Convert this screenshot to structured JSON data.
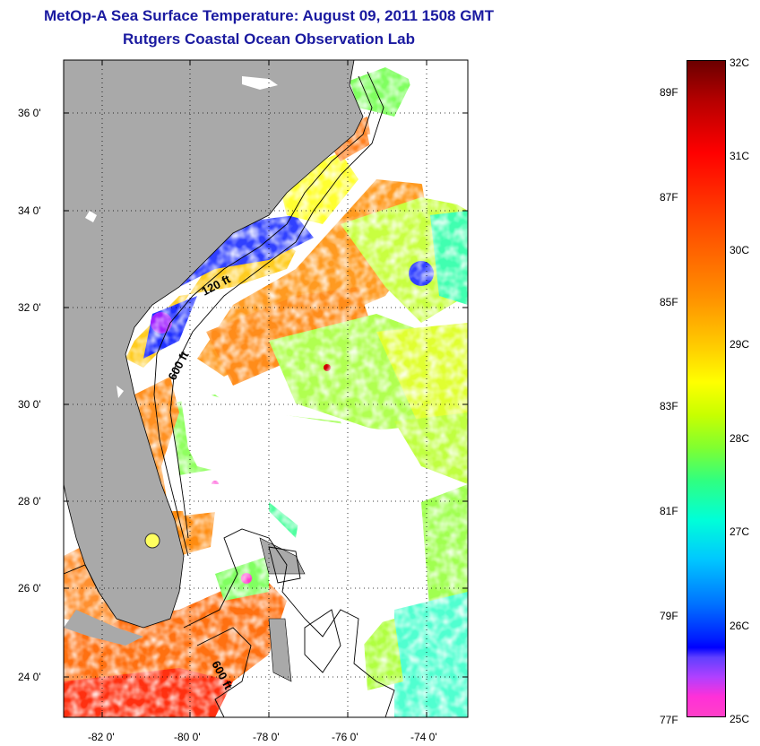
{
  "header": {
    "title": "MetOp-A Sea Surface Temperature:  August 09, 2011 1508 GMT",
    "subtitle": "Rutgers Coastal Ocean Observation Lab"
  },
  "map": {
    "lat_labels": [
      "36 0'",
      "34 0'",
      "32 0'",
      "30 0'",
      "28 0'",
      "26 0'",
      "24 0'"
    ],
    "lon_labels": [
      "-82 0'",
      "-80 0'",
      "-78 0'",
      "-76 0'",
      "-74 0'"
    ],
    "contours": [
      {
        "label": "120 ft"
      },
      {
        "label": "600 ft"
      },
      {
        "label": "600 ft"
      }
    ],
    "colors": {
      "land": "#a9a9a9",
      "cloud": "#ffffff",
      "frame": "#000000"
    }
  },
  "colorbar": {
    "celsius_labels": [
      "32C",
      "31C",
      "30C",
      "29C",
      "28C",
      "27C",
      "26C",
      "25C"
    ],
    "fahrenheit_labels": [
      "89F",
      "87F",
      "85F",
      "83F",
      "81F",
      "79F",
      "77F"
    ]
  }
}
